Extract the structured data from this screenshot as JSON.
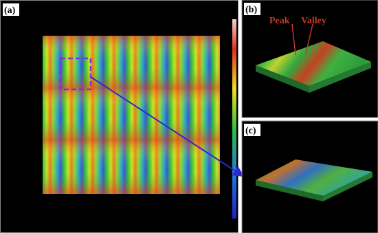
{
  "panels": [
    {
      "label": "(a)"
    },
    {
      "label": "(b)",
      "annotations": [
        "Peak",
        "Valley"
      ]
    },
    {
      "label": "(c)"
    }
  ]
}
